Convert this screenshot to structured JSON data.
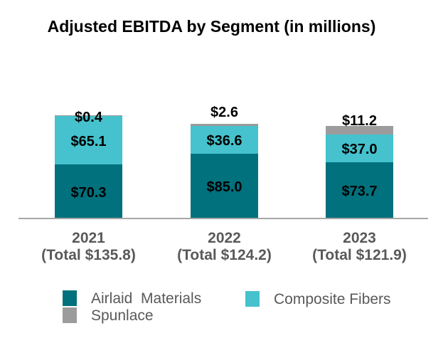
{
  "title": "Adjusted EBITDA by Segment (in millions)",
  "colors": {
    "airlaid": "#01717d",
    "composite": "#45c2cd",
    "spunlace": "#9c9c9c",
    "axis_line": "#a6a6a6",
    "label_text": "#000000",
    "axis_text": "#595959"
  },
  "chart_data": {
    "type": "bar",
    "stacked": true,
    "title": "Adjusted EBITDA by Segment (in millions)",
    "categories": [
      "2021",
      "2022",
      "2023"
    ],
    "category_sublabels": [
      "(Total $135.8)",
      "(Total $124.2)",
      "(Total $121.9)"
    ],
    "totals": [
      135.8,
      124.2,
      121.9
    ],
    "series": [
      {
        "name": "Airlaid Materials",
        "color_key": "airlaid",
        "values": [
          70.3,
          85.0,
          73.7
        ],
        "labels": [
          "$70.3",
          "$85.0",
          "$73.7"
        ],
        "label_placement": "inside-center"
      },
      {
        "name": "Composite Fibers",
        "color_key": "composite",
        "values": [
          65.1,
          36.6,
          37.0
        ],
        "labels": [
          "$65.1",
          "$36.6",
          "$37.0"
        ],
        "label_placement": "inside-center"
      },
      {
        "name": "Spunlace",
        "color_key": "spunlace",
        "values": [
          0.4,
          2.6,
          11.2
        ],
        "labels": [
          "$0.4",
          "$2.6",
          "$11.2"
        ],
        "label_placement": "outside-end"
      }
    ],
    "xlabel": "",
    "ylabel": "",
    "grid": false,
    "legend_position": "bottom"
  },
  "legend": {
    "items": [
      {
        "label": "Airlaid  Materials",
        "color_key": "airlaid"
      },
      {
        "label": "Composite Fibers",
        "color_key": "composite"
      },
      {
        "label": "Spunlace",
        "color_key": "spunlace"
      }
    ]
  }
}
